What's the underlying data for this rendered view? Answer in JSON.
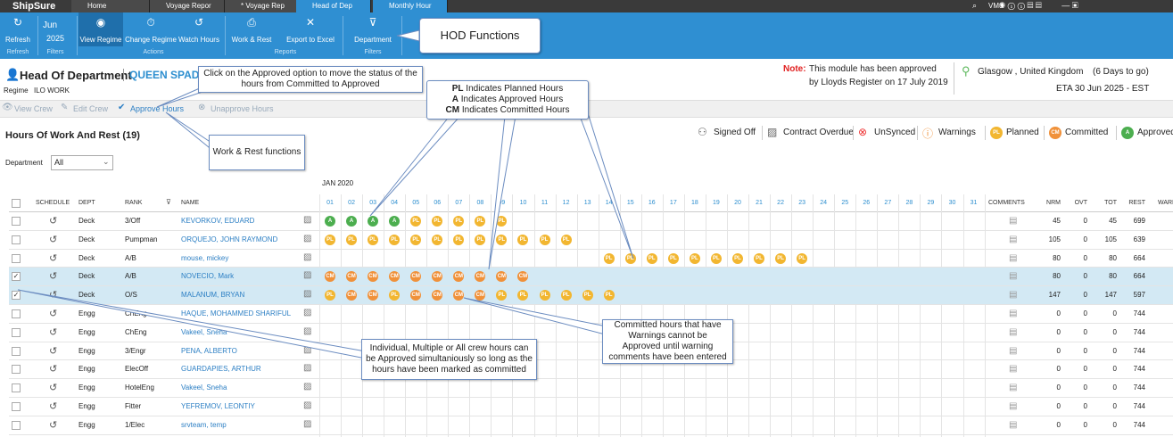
{
  "top_bar": {
    "logo": "ShipSure",
    "tabs": [
      "Home",
      "Voyage Repor",
      "* Voyage Rep",
      "Head of Dep",
      "Monthly Hour"
    ],
    "vms": "VMS"
  },
  "ribbon": {
    "buttons": [
      "Refresh",
      "View Regime",
      "Change Regime",
      "Watch Hours",
      "Work & Rest",
      "Export to Excel",
      "Department"
    ],
    "month": "Jun",
    "year": "2025",
    "groups": [
      "Refresh",
      "Filters",
      "Actions",
      "Reports",
      "Filters"
    ]
  },
  "header": {
    "title": "Head Of Department",
    "vessel": "QUEEN SPADE",
    "regime_label": "Regime",
    "regime": "ILO WORK",
    "note_label": "Note:",
    "note_line1": "This module has been approved",
    "note_line2": "by Lloyds Register on 17 July 2019",
    "location": "Glasgow ,  United Kingdom",
    "days_to_go": "(6 Days to go)",
    "eta": "ETA 30 Jun 2025  -  EST"
  },
  "toolbar": [
    "View Crew",
    "Edit Crew",
    "Approve Hours",
    "Unapprove Hours"
  ],
  "section_title": "Hours Of Work And Rest (19)",
  "legend": [
    {
      "label": "Signed Off"
    },
    {
      "label": "Contract Overdue"
    },
    {
      "label": "UnSynced"
    },
    {
      "label": "Warnings"
    },
    {
      "label": "Planned",
      "code": "PL"
    },
    {
      "label": "Committed",
      "code": "CM"
    },
    {
      "label": "Approved",
      "code": "A"
    }
  ],
  "filter": {
    "label": "Department",
    "value": "All"
  },
  "table": {
    "period": "JAN 2020",
    "columns": [
      "SCHEDULE",
      "DEPT",
      "RANK",
      "NAME"
    ],
    "days": [
      "01",
      "02",
      "03",
      "04",
      "05",
      "06",
      "07",
      "08",
      "09",
      "10",
      "11",
      "12",
      "13",
      "14",
      "15",
      "16",
      "17",
      "18",
      "19",
      "20",
      "21",
      "22",
      "23",
      "24",
      "25",
      "26",
      "27",
      "28",
      "29",
      "30",
      "31"
    ],
    "summary_columns": [
      "COMMENTS",
      "NRM",
      "OVT",
      "TOT",
      "REST",
      "WARI"
    ],
    "rows": [
      {
        "checked": false,
        "dept": "Deck",
        "rank": "3/Off",
        "name": "KEVORKOV, EDUARD",
        "days": [
          "A",
          "A",
          "A",
          "A",
          "PL",
          "PL",
          "PL",
          "PL",
          "PL",
          null,
          null,
          null,
          null,
          null,
          null,
          null,
          null,
          null,
          null,
          null,
          null,
          null,
          null,
          null,
          null,
          null,
          null,
          null,
          null,
          null,
          null
        ],
        "nrm": "45",
        "ovt": "0",
        "tot": "45",
        "rest": "699"
      },
      {
        "checked": false,
        "dept": "Deck",
        "rank": "Pumpman",
        "name": "ORQUEJO, JOHN RAYMOND",
        "days": [
          "PL",
          "PL",
          "PL",
          "PL",
          "PL",
          "PL",
          "PL",
          "PL",
          "PL",
          "PL",
          "PL",
          "PL",
          null,
          null,
          null,
          null,
          null,
          null,
          null,
          null,
          null,
          null,
          null,
          null,
          null,
          null,
          null,
          null,
          null,
          null,
          null
        ],
        "nrm": "105",
        "ovt": "0",
        "tot": "105",
        "rest": "639"
      },
      {
        "checked": false,
        "dept": "Deck",
        "rank": "A/B",
        "name": "mouse, mickey",
        "days": [
          null,
          null,
          null,
          null,
          null,
          null,
          null,
          null,
          null,
          null,
          null,
          null,
          null,
          "PL",
          "PL",
          "PL",
          "PL",
          "PL",
          "PL",
          "PL",
          "PL",
          "PL",
          "PL",
          null,
          null,
          null,
          null,
          null,
          null,
          null,
          null
        ],
        "nrm": "80",
        "ovt": "0",
        "tot": "80",
        "rest": "664"
      },
      {
        "checked": true,
        "dept": "Deck",
        "rank": "A/B",
        "name": "NOVECIO, Mark",
        "days": [
          "CM",
          "CM",
          "CM",
          "CM",
          "CM",
          "CM",
          "CM",
          "CM",
          "CM",
          "CM",
          null,
          null,
          null,
          null,
          null,
          null,
          null,
          null,
          null,
          null,
          null,
          null,
          null,
          null,
          null,
          null,
          null,
          null,
          null,
          null,
          null
        ],
        "nrm": "80",
        "ovt": "0",
        "tot": "80",
        "rest": "664"
      },
      {
        "checked": true,
        "dept": "Deck",
        "rank": "O/S",
        "name": "MALANUM, BRYAN",
        "days": [
          "PL",
          "CM",
          "CM",
          "PL",
          "CM",
          "CM",
          "CM",
          "CM",
          "PL",
          "PL",
          "PL",
          "PL",
          "PL",
          "PL",
          null,
          null,
          null,
          null,
          null,
          null,
          null,
          null,
          null,
          null,
          null,
          null,
          null,
          null,
          null,
          null,
          null
        ],
        "nrm": "147",
        "ovt": "0",
        "tot": "147",
        "rest": "597"
      },
      {
        "checked": false,
        "dept": "Engg",
        "rank": "ChEng",
        "name": "HAQUE, MOHAMMED SHARIFUL",
        "days": [
          null,
          null,
          null,
          null,
          null,
          null,
          null,
          null,
          null,
          null,
          null,
          null,
          null,
          null,
          null,
          null,
          null,
          null,
          null,
          null,
          null,
          null,
          null,
          null,
          null,
          null,
          null,
          null,
          null,
          null,
          null
        ],
        "nrm": "0",
        "ovt": "0",
        "tot": "0",
        "rest": "744"
      },
      {
        "checked": false,
        "dept": "Engg",
        "rank": "ChEng",
        "name": "Vakeel, Sneha",
        "days": [
          null,
          null,
          null,
          null,
          null,
          null,
          null,
          null,
          null,
          null,
          null,
          null,
          null,
          null,
          null,
          null,
          null,
          null,
          null,
          null,
          null,
          null,
          null,
          null,
          null,
          null,
          null,
          null,
          null,
          null,
          null
        ],
        "nrm": "0",
        "ovt": "0",
        "tot": "0",
        "rest": "744"
      },
      {
        "checked": false,
        "dept": "Engg",
        "rank": "3/Engr",
        "name": "PENA, ALBERTO",
        "days": [
          null,
          null,
          null,
          null,
          null,
          null,
          null,
          null,
          null,
          null,
          null,
          null,
          null,
          null,
          null,
          null,
          null,
          null,
          null,
          null,
          null,
          null,
          null,
          null,
          null,
          null,
          null,
          null,
          null,
          null,
          null
        ],
        "nrm": "0",
        "ovt": "0",
        "tot": "0",
        "rest": "744"
      },
      {
        "checked": false,
        "dept": "Engg",
        "rank": "ElecOff",
        "name": "GUARDAPIES, ARTHUR",
        "days": [
          null,
          null,
          null,
          null,
          null,
          null,
          null,
          null,
          null,
          null,
          null,
          null,
          null,
          null,
          null,
          null,
          null,
          null,
          null,
          null,
          null,
          null,
          null,
          null,
          null,
          null,
          null,
          null,
          null,
          null,
          null
        ],
        "nrm": "0",
        "ovt": "0",
        "tot": "0",
        "rest": "744"
      },
      {
        "checked": false,
        "dept": "Engg",
        "rank": "HotelEng",
        "name": "Vakeel, Sneha",
        "days": [
          null,
          null,
          null,
          null,
          null,
          null,
          null,
          null,
          null,
          null,
          null,
          null,
          null,
          null,
          null,
          null,
          null,
          null,
          null,
          null,
          null,
          null,
          null,
          null,
          null,
          null,
          null,
          null,
          null,
          null,
          null
        ],
        "nrm": "0",
        "ovt": "0",
        "tot": "0",
        "rest": "744"
      },
      {
        "checked": false,
        "dept": "Engg",
        "rank": "Fitter",
        "name": "YEFREMOV, LEONTIY",
        "days": [
          null,
          null,
          null,
          null,
          null,
          null,
          null,
          null,
          null,
          null,
          null,
          null,
          null,
          null,
          null,
          null,
          null,
          null,
          null,
          null,
          null,
          null,
          null,
          null,
          null,
          null,
          null,
          null,
          null,
          null,
          null
        ],
        "nrm": "0",
        "ovt": "0",
        "tot": "0",
        "rest": "744"
      },
      {
        "checked": false,
        "dept": "Engg",
        "rank": "1/Elec",
        "name": "srvteam, temp",
        "days": [
          null,
          null,
          null,
          null,
          null,
          null,
          null,
          null,
          null,
          null,
          null,
          null,
          null,
          null,
          null,
          null,
          null,
          null,
          null,
          null,
          null,
          null,
          null,
          null,
          null,
          null,
          null,
          null,
          null,
          null,
          null
        ],
        "nrm": "0",
        "ovt": "0",
        "tot": "0",
        "rest": "744"
      }
    ]
  },
  "callouts": {
    "hod": "HOD Functions",
    "approve": "Click on the Approved option to move the status of the hours from Committed to Approved",
    "codes": [
      {
        "code": "PL",
        "text": "Indicates Planned Hours"
      },
      {
        "code": "A",
        "text": "Indicates Approved Hours"
      },
      {
        "code": "CM",
        "text": "Indicates Committed Hours"
      }
    ],
    "work_rest": "Work & Rest functions",
    "warnings": "Committed hours that have Warnings cannot be Approved until warning comments have been entered",
    "multi": "Individual, Multiple or All crew hours can be Approved simultaniously so long as the hours have been marked as committed"
  }
}
